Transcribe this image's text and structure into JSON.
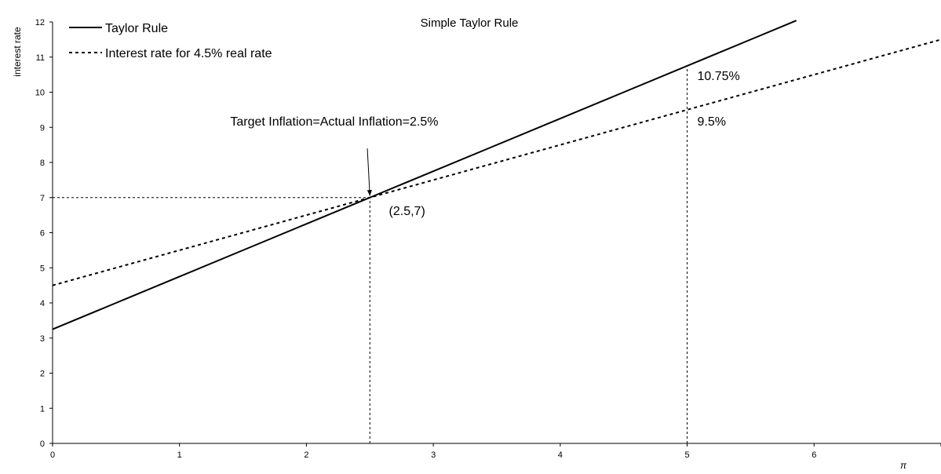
{
  "chart_data": {
    "type": "line",
    "title": "Simple Taylor Rule",
    "xlabel": "π",
    "ylabel": "interest rate",
    "xlim": [
      0,
      7
    ],
    "ylim": [
      0,
      12
    ],
    "x_ticks": [
      0,
      1,
      2,
      3,
      4,
      5,
      6
    ],
    "y_ticks": [
      0,
      1,
      2,
      3,
      4,
      5,
      6,
      7,
      8,
      9,
      10,
      11,
      12
    ],
    "grid": false,
    "legend": {
      "position": "top-left"
    },
    "series": [
      {
        "name": "Taylor Rule",
        "style": "solid",
        "color": "#000000",
        "x": [
          0,
          0.5,
          1,
          1.5,
          2,
          2.5,
          3,
          3.5,
          4,
          4.5,
          5,
          5.5,
          5.86
        ],
        "y": [
          3.25,
          4.0,
          4.75,
          5.5,
          6.25,
          7.0,
          7.75,
          8.5,
          9.25,
          10.0,
          10.75,
          11.5,
          12.04
        ]
      },
      {
        "name": "Interest rate for 4.5% real rate",
        "style": "dashed",
        "color": "#000000",
        "x": [
          0,
          1,
          2,
          2.5,
          3,
          4,
          5,
          6,
          7
        ],
        "y": [
          4.5,
          5.5,
          6.5,
          7.0,
          7.5,
          8.5,
          9.5,
          10.5,
          11.5
        ]
      }
    ],
    "reference_lines": [
      {
        "type": "h",
        "y": 7,
        "x_from": 0,
        "x_to": 2.5
      },
      {
        "type": "v",
        "x": 2.5,
        "y_from": 0,
        "y_to": 7
      },
      {
        "type": "v",
        "x": 5,
        "y_from": 0,
        "y_to": 10.75
      }
    ],
    "annotations": [
      {
        "text": "Target Inflation=Actual Inflation=2.5%",
        "x": 1.4,
        "y": 9.05
      },
      {
        "text": "(2.5,7)",
        "x": 2.65,
        "y": 6.5
      },
      {
        "text": "10.75%",
        "x": 5.08,
        "y": 10.35
      },
      {
        "text": "9.5%",
        "x": 5.08,
        "y": 9.05
      }
    ],
    "arrow": {
      "from": [
        2.48,
        8.4
      ],
      "to": [
        2.5,
        7.05
      ]
    }
  }
}
